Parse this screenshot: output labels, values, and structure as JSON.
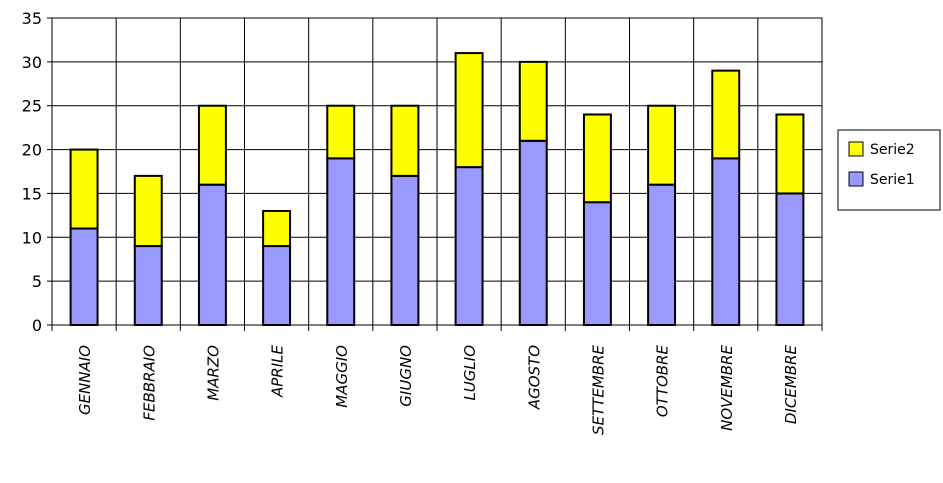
{
  "chart_data": {
    "type": "bar",
    "stacked": true,
    "categories": [
      "GENNAIO",
      "FEBBRAIO",
      "MARZO",
      "APRILE",
      "MAGGIO",
      "GIUGNO",
      "LUGLIO",
      "AGOSTO",
      "SETTEMBRE",
      "OTTOBRE",
      "NOVEMBRE",
      "DICEMBRE"
    ],
    "series": [
      {
        "name": "Serie1",
        "color": "#9999ff",
        "values": [
          11,
          9,
          16,
          9,
          19,
          17,
          18,
          21,
          14,
          16,
          19,
          15
        ]
      },
      {
        "name": "Serie2",
        "color": "#ffff00",
        "values": [
          9,
          8,
          9,
          4,
          6,
          8,
          13,
          9,
          10,
          9,
          10,
          9
        ]
      }
    ],
    "ylim": [
      0,
      35
    ],
    "yticks": [
      0,
      5,
      10,
      15,
      20,
      25,
      30,
      35
    ],
    "grid": true,
    "legend_position": "right",
    "title": "",
    "xlabel": "",
    "ylabel": ""
  }
}
